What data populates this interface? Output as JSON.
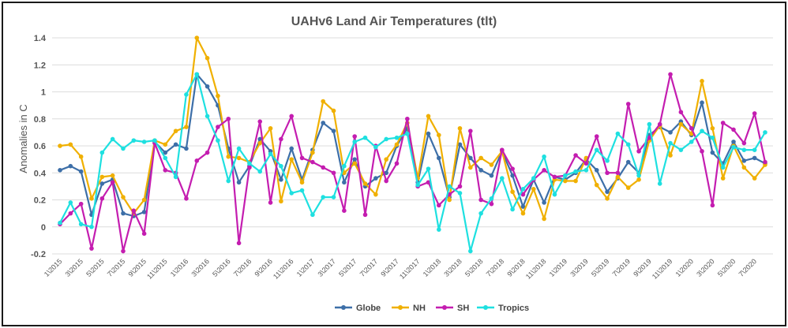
{
  "chart_data": {
    "type": "line",
    "title": "UAHv6 Land Air Temperatures (tlt)",
    "xlabel": "",
    "ylabel": "Anomalies in C",
    "ylim": [
      -0.2,
      1.4
    ],
    "yticks": [
      "-0.2",
      "0",
      "0.2",
      "0.4",
      "0.6",
      "0.8",
      "1",
      "1.2",
      "1.4"
    ],
    "grid": "horizontal",
    "legend": "bottom",
    "x": [
      "1\\2015",
      "2\\2015",
      "3\\2015",
      "4\\2015",
      "5\\2015",
      "6\\2015",
      "7\\2015",
      "8\\2015",
      "9\\2015",
      "10\\2015",
      "11\\2015",
      "12\\2015",
      "1\\2016",
      "2\\2016",
      "3\\2016",
      "4\\2016",
      "5\\2016",
      "6\\2016",
      "7\\2016",
      "8\\2016",
      "9\\2016",
      "10\\2016",
      "11\\2016",
      "12\\2016",
      "1\\2017",
      "2\\2017",
      "3\\2017",
      "4\\2017",
      "5\\2017",
      "6\\2017",
      "7\\2017",
      "8\\2017",
      "9\\2017",
      "10\\2017",
      "11\\2017",
      "12\\2017",
      "1\\2018",
      "2\\2018",
      "3\\2018",
      "4\\2018",
      "5\\2018",
      "6\\2018",
      "7\\2018",
      "8\\2018",
      "9\\2018",
      "10\\2018",
      "11\\2018",
      "12\\2018",
      "1\\2019",
      "2\\2019",
      "3\\2019",
      "4\\2019",
      "5\\2019",
      "6\\2019",
      "7\\2019",
      "8\\2019",
      "9\\2019",
      "10\\2019",
      "11\\2019",
      "12\\2019",
      "1\\2020",
      "2\\2020",
      "3\\2020",
      "4\\2020",
      "5\\2020",
      "6\\2020",
      "7\\2020",
      "8\\2020"
    ],
    "xtick_labels": [
      "1\\2015",
      "3\\2015",
      "5\\2015",
      "7\\2015",
      "9\\2015",
      "11\\2015",
      "1\\2016",
      "3\\2016",
      "5\\2016",
      "7\\2016",
      "9\\2016",
      "11\\2016",
      "1\\2017",
      "3\\2017",
      "5\\2017",
      "7\\2017",
      "9\\2017",
      "11\\2017",
      "1\\2018",
      "3\\2018",
      "5\\2018",
      "7\\2018",
      "9\\2018",
      "11\\2018",
      "1\\2019",
      "3\\2019",
      "5\\2019",
      "7\\2019",
      "9\\2019",
      "11\\2019",
      "1\\2020",
      "3\\2020",
      "5\\2020",
      "7\\2020"
    ],
    "series": [
      {
        "name": "Globe",
        "color": "#3d6fa8",
        "values": [
          0.42,
          0.45,
          0.41,
          0.09,
          0.32,
          0.35,
          0.1,
          0.08,
          0.11,
          0.63,
          0.55,
          0.61,
          0.58,
          1.13,
          1.04,
          0.9,
          0.58,
          0.33,
          0.45,
          0.65,
          0.56,
          0.35,
          0.58,
          0.35,
          0.57,
          0.77,
          0.71,
          0.33,
          0.5,
          0.3,
          0.36,
          0.4,
          0.6,
          0.73,
          0.33,
          0.69,
          0.51,
          0.22,
          0.61,
          0.51,
          0.42,
          0.38,
          0.56,
          0.38,
          0.15,
          0.35,
          0.18,
          0.37,
          0.35,
          0.4,
          0.5,
          0.42,
          0.26,
          0.36,
          0.48,
          0.4,
          0.68,
          0.74,
          0.7,
          0.78,
          0.68,
          0.92,
          0.55,
          0.47,
          0.63,
          0.49,
          0.51,
          0.47
        ]
      },
      {
        "name": "NH",
        "color": "#f0b000",
        "values": [
          0.6,
          0.61,
          0.52,
          0.21,
          0.37,
          0.38,
          0.22,
          0.1,
          0.2,
          0.64,
          0.61,
          0.71,
          0.74,
          1.4,
          1.25,
          0.97,
          0.52,
          0.51,
          0.48,
          0.62,
          0.73,
          0.19,
          0.5,
          0.33,
          0.55,
          0.93,
          0.86,
          0.4,
          0.47,
          0.32,
          0.24,
          0.5,
          0.61,
          0.77,
          0.36,
          0.82,
          0.68,
          0.2,
          0.73,
          0.44,
          0.51,
          0.46,
          0.56,
          0.26,
          0.1,
          0.28,
          0.06,
          0.35,
          0.34,
          0.34,
          0.51,
          0.31,
          0.21,
          0.37,
          0.29,
          0.35,
          0.64,
          0.75,
          0.53,
          0.76,
          0.69,
          1.08,
          0.73,
          0.36,
          0.6,
          0.44,
          0.36,
          0.46
        ]
      },
      {
        "name": "SH",
        "color": "#c41db0",
        "values": [
          0.02,
          0.1,
          0.17,
          -0.16,
          0.21,
          0.33,
          -0.18,
          0.12,
          -0.05,
          0.62,
          0.42,
          0.4,
          0.21,
          0.49,
          0.55,
          0.74,
          0.8,
          -0.12,
          0.44,
          0.78,
          0.18,
          0.65,
          0.82,
          0.51,
          0.48,
          0.44,
          0.4,
          0.12,
          0.67,
          0.09,
          0.6,
          0.34,
          0.47,
          0.8,
          0.3,
          0.33,
          0.16,
          0.24,
          0.3,
          0.71,
          0.2,
          0.17,
          0.57,
          0.43,
          0.24,
          0.35,
          0.42,
          0.37,
          0.38,
          0.53,
          0.47,
          0.67,
          0.4,
          0.4,
          0.91,
          0.56,
          0.66,
          0.76,
          1.13,
          0.85,
          0.73,
          0.56,
          0.16,
          0.77,
          0.72,
          0.62,
          0.84,
          0.48
        ]
      },
      {
        "name": "Tropics",
        "color": "#1ee0e0",
        "values": [
          0.03,
          0.18,
          0.02,
          0.0,
          0.55,
          0.65,
          0.58,
          0.64,
          0.63,
          0.64,
          0.51,
          0.37,
          0.98,
          1.13,
          0.82,
          0.64,
          0.34,
          0.58,
          0.47,
          0.41,
          0.54,
          0.45,
          0.25,
          0.27,
          0.09,
          0.22,
          0.22,
          0.45,
          0.63,
          0.66,
          0.59,
          0.65,
          0.66,
          0.69,
          0.31,
          0.43,
          -0.02,
          0.3,
          0.25,
          -0.18,
          0.1,
          0.21,
          0.36,
          0.13,
          0.28,
          0.36,
          0.52,
          0.24,
          0.38,
          0.41,
          0.42,
          0.57,
          0.49,
          0.69,
          0.61,
          0.38,
          0.76,
          0.32,
          0.62,
          0.57,
          0.63,
          0.71,
          0.66,
          0.44,
          0.59,
          0.57,
          0.57,
          0.7
        ]
      }
    ]
  }
}
